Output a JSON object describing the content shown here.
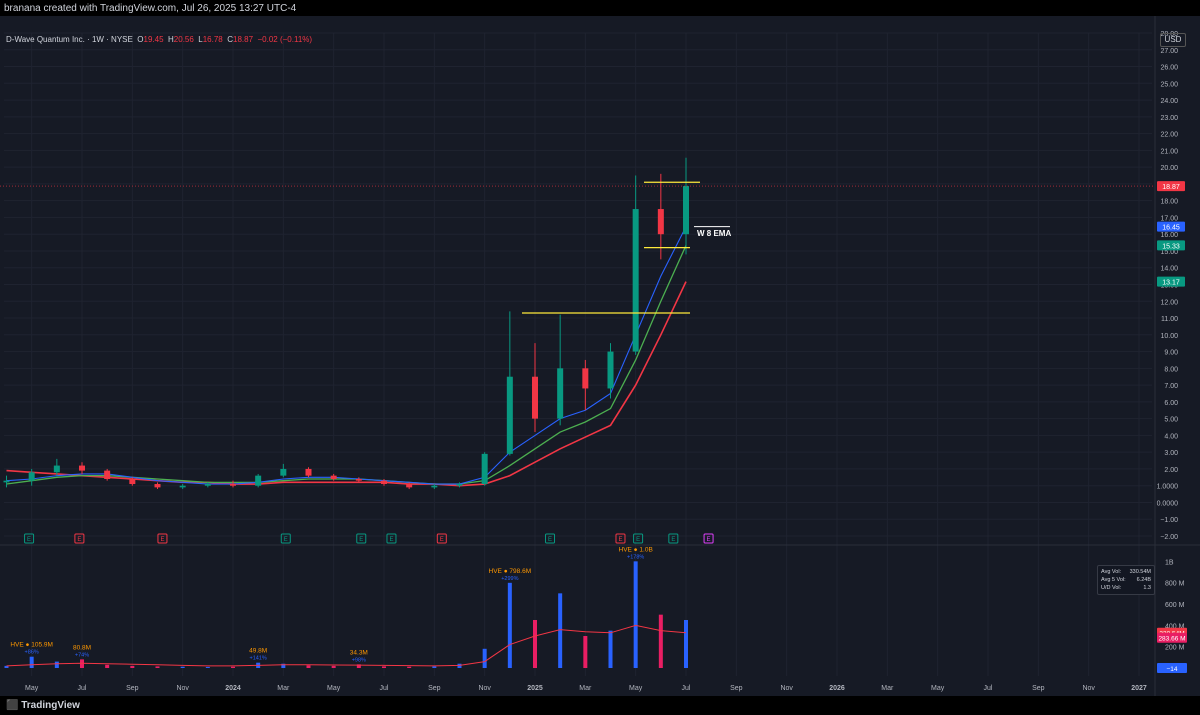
{
  "header": {
    "credit": "branana created with TradingView.com, Jul 26, 2025 13:27 UTC-4"
  },
  "legend": {
    "symbol": "D-Wave Quantum Inc. · 1W · NYSE",
    "open_label": "O",
    "open": "19.45",
    "high_label": "H",
    "high": "20.56",
    "low_label": "L",
    "low": "16.78",
    "close_label": "C",
    "close": "18.87",
    "change": "−0.02 (−0.11%)"
  },
  "currency": "USD",
  "price_axis": {
    "labels": [
      "28.00",
      "27.00",
      "26.00",
      "25.00",
      "24.00",
      "23.00",
      "22.00",
      "21.00",
      "20.00",
      "19.00",
      "18.00",
      "17.00",
      "16.00",
      "15.00",
      "14.00",
      "13.00",
      "12.00",
      "11.00",
      "10.00",
      "9.00",
      "8.00",
      "7.00",
      "6.00",
      "5.00",
      "4.00",
      "3.00",
      "2.00",
      "1.0000",
      "0.0000",
      "−1.00",
      "−2.00"
    ]
  },
  "price_badges": [
    {
      "text": "18.87",
      "color": "#f23645",
      "value": 18.87
    },
    {
      "text": "16.45",
      "color": "#2962ff",
      "value": 16.45
    },
    {
      "text": "15.33",
      "color": "#089981",
      "value": 15.33
    },
    {
      "text": "13.17",
      "color": "#089981",
      "value": 13.17
    }
  ],
  "volume_axis": {
    "labels": [
      "1B",
      "800 M",
      "600 M",
      "400 M",
      "200 M"
    ],
    "badges": [
      {
        "text": "330.54M",
        "color": "#f23645"
      },
      {
        "text": "283.66 M",
        "color": "#e91e63"
      },
      {
        "text": "−14",
        "color": "#2962ff"
      }
    ]
  },
  "time_axis": {
    "labels": [
      "May",
      "Jul",
      "Sep",
      "Nov",
      "2024",
      "Mar",
      "May",
      "Jul",
      "Sep",
      "Nov",
      "2025",
      "Mar",
      "May",
      "Jul",
      "Sep",
      "Nov",
      "2026",
      "Mar",
      "May",
      "Jul",
      "Sep",
      "Nov",
      "2027"
    ]
  },
  "annotation": {
    "ema_label": "W 8 EMA"
  },
  "earnings_markers": [
    "E",
    "E",
    "E",
    "E",
    "E",
    "E",
    "E",
    "E",
    "E",
    "E",
    "E",
    "E"
  ],
  "volume_stats": {
    "avg_vol_label": "Avg Vol:",
    "avg_vol": "330.54M",
    "avg5_label": "Avg 5 Vol:",
    "avg5": "6.24B",
    "ud_label": "U/D Vol:",
    "ud": "1.3"
  },
  "hve_labels": [
    {
      "text": "HVE ● 105.9M",
      "pct": "+86%"
    },
    {
      "text": "80.8M",
      "pct": "+74%"
    },
    {
      "text": "49.8M",
      "pct": "+141%"
    },
    {
      "text": "34.3M",
      "pct": "+98%"
    },
    {
      "text": "HVE ● 798.6M",
      "pct": "+299%"
    },
    {
      "text": "HVE ● 1.0B",
      "pct": "+178%"
    }
  ],
  "footer": {
    "brand": "TradingView"
  },
  "colors": {
    "up": "#089981",
    "down": "#f23645",
    "ema_red": "#f23645",
    "ema_green": "#4caf50",
    "ema_blue": "#2962ff",
    "level": "#ffeb3b",
    "vol_up": "#2962ff",
    "vol_down": "#e91e63",
    "vol_avg": "#f23645"
  },
  "chart_data": {
    "type": "candlestick",
    "title": "D-Wave Quantum Inc. · 1W · NYSE",
    "xlabel": "",
    "ylabel": "",
    "ylim": [
      -2,
      28
    ],
    "x": [
      "2023-04",
      "2023-05",
      "2023-06",
      "2023-07",
      "2023-08",
      "2023-09",
      "2023-10",
      "2023-11",
      "2023-12",
      "2024-01",
      "2024-02",
      "2024-03",
      "2024-04",
      "2024-05",
      "2024-06",
      "2024-07",
      "2024-08",
      "2024-09",
      "2024-10",
      "2024-11",
      "2024-12",
      "2025-01",
      "2025-02",
      "2025-03",
      "2025-04",
      "2025-05",
      "2025-06",
      "2025-07"
    ],
    "ohlc": [
      [
        1.2,
        1.6,
        0.9,
        1.3
      ],
      [
        1.3,
        2.0,
        1.0,
        1.8
      ],
      [
        1.8,
        2.6,
        1.6,
        2.2
      ],
      [
        2.2,
        2.4,
        1.7,
        1.9
      ],
      [
        1.9,
        2.0,
        1.3,
        1.4
      ],
      [
        1.4,
        1.5,
        1.0,
        1.1
      ],
      [
        1.1,
        1.2,
        0.8,
        0.9
      ],
      [
        0.9,
        1.1,
        0.8,
        1.0
      ],
      [
        1.0,
        1.2,
        0.9,
        1.1
      ],
      [
        1.1,
        1.3,
        0.9,
        1.0
      ],
      [
        1.0,
        1.7,
        0.9,
        1.6
      ],
      [
        1.6,
        2.3,
        1.5,
        2.0
      ],
      [
        2.0,
        2.1,
        1.5,
        1.6
      ],
      [
        1.6,
        1.7,
        1.3,
        1.4
      ],
      [
        1.4,
        1.5,
        1.2,
        1.3
      ],
      [
        1.3,
        1.4,
        1.0,
        1.1
      ],
      [
        1.1,
        1.2,
        0.8,
        0.9
      ],
      [
        0.9,
        1.1,
        0.8,
        1.0
      ],
      [
        1.0,
        1.2,
        0.9,
        1.1
      ],
      [
        1.1,
        3.0,
        1.0,
        2.9
      ],
      [
        2.9,
        11.4,
        2.8,
        7.5
      ],
      [
        7.5,
        9.5,
        4.2,
        5.0
      ],
      [
        5.0,
        11.2,
        4.6,
        8.0
      ],
      [
        8.0,
        8.5,
        5.5,
        6.8
      ],
      [
        6.8,
        9.5,
        6.2,
        9.0
      ],
      [
        9.0,
        19.5,
        8.8,
        17.5
      ],
      [
        17.5,
        19.6,
        14.5,
        16.0
      ],
      [
        16.0,
        20.56,
        14.8,
        18.87
      ]
    ],
    "ema_8": [
      1.3,
      1.4,
      1.6,
      1.7,
      1.7,
      1.5,
      1.3,
      1.2,
      1.1,
      1.1,
      1.2,
      1.4,
      1.5,
      1.5,
      1.4,
      1.3,
      1.2,
      1.1,
      1.1,
      1.5,
      3.0,
      4.0,
      5.0,
      5.5,
      6.5,
      10.0,
      13.5,
      16.45
    ],
    "ema_21": [
      1.1,
      1.3,
      1.5,
      1.6,
      1.6,
      1.5,
      1.4,
      1.3,
      1.2,
      1.2,
      1.2,
      1.3,
      1.4,
      1.4,
      1.4,
      1.3,
      1.2,
      1.1,
      1.1,
      1.3,
      2.2,
      3.2,
      4.2,
      4.8,
      5.6,
      8.5,
      12.0,
      15.33
    ],
    "ema_50": [
      1.9,
      1.8,
      1.7,
      1.6,
      1.5,
      1.4,
      1.3,
      1.2,
      1.2,
      1.1,
      1.1,
      1.2,
      1.2,
      1.2,
      1.2,
      1.2,
      1.1,
      1.1,
      1.0,
      1.1,
      1.6,
      2.4,
      3.2,
      3.9,
      4.6,
      7.0,
      10.0,
      13.17
    ],
    "levels": [
      11.3,
      19.1,
      15.2,
      16.45
    ],
    "volume": [
      20,
      105.9,
      60,
      80.8,
      30,
      20,
      15,
      12,
      10,
      12,
      49.8,
      40,
      25,
      20,
      34.3,
      15,
      12,
      15,
      40,
      180,
      798.6,
      450,
      700,
      300,
      350,
      1000,
      500,
      450
    ],
    "volume_avg": [
      20,
      30,
      40,
      45,
      40,
      35,
      30,
      25,
      20,
      20,
      25,
      30,
      30,
      28,
      27,
      25,
      22,
      20,
      25,
      60,
      220,
      300,
      360,
      340,
      330,
      400,
      350,
      330.54
    ]
  }
}
